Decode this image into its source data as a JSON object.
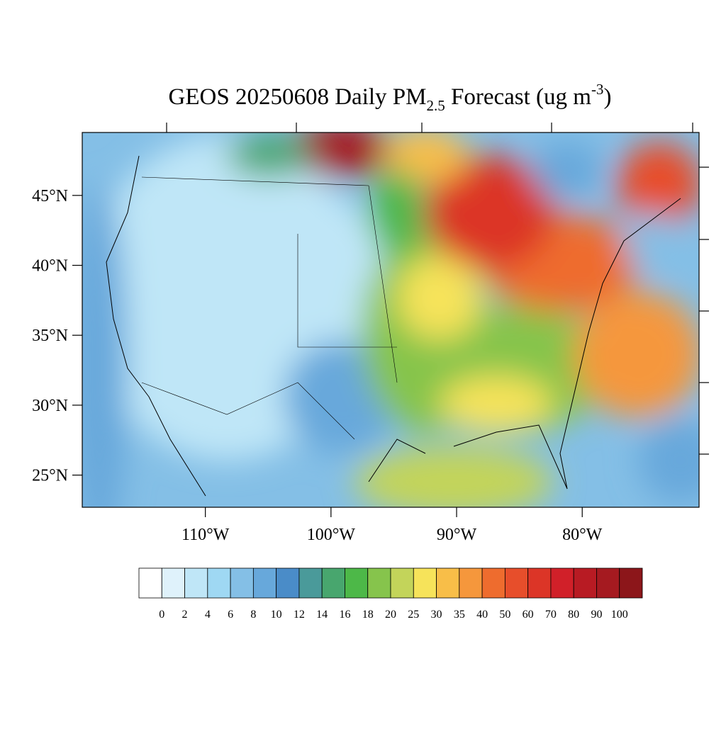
{
  "map": {
    "title": {
      "prefix": "GEOS 20250608 Daily PM",
      "sub": "2.5",
      "mid": " Forecast (ug m",
      "sup": "-3",
      "suffix": ")"
    },
    "lonlim": [
      -119.8,
      -70.7
    ],
    "latlim": [
      22.7,
      49.5
    ],
    "lon_ticks": [
      {
        "value": -110,
        "label": "110°W"
      },
      {
        "value": -100,
        "label": "100°W"
      },
      {
        "value": -90,
        "label": "90°W"
      },
      {
        "value": -80,
        "label": "80°W"
      }
    ],
    "lat_ticks": [
      {
        "value": 45,
        "label": "45°N"
      },
      {
        "value": 40,
        "label": "40°N"
      },
      {
        "value": 35,
        "label": "35°N"
      },
      {
        "value": 30,
        "label": "30°N"
      },
      {
        "value": 25,
        "label": "25°N"
      }
    ]
  },
  "colorbar": {
    "levels": [
      0,
      2,
      4,
      6,
      8,
      10,
      12,
      14,
      16,
      18,
      20,
      25,
      30,
      35,
      40,
      50,
      60,
      70,
      80,
      90,
      100
    ],
    "colors": [
      "#ffffff",
      "#dff2fb",
      "#bfe6f7",
      "#9fd8f3",
      "#84bfe6",
      "#67a8db",
      "#4a8cc8",
      "#4a9a9a",
      "#48a66e",
      "#4db848",
      "#86c44c",
      "#c3d45a",
      "#f6e35a",
      "#f8be48",
      "#f5973c",
      "#ee6c2e",
      "#e74e2b",
      "#dc3527",
      "#d12029",
      "#b81b23",
      "#a51a20",
      "#8c161a"
    ]
  }
}
